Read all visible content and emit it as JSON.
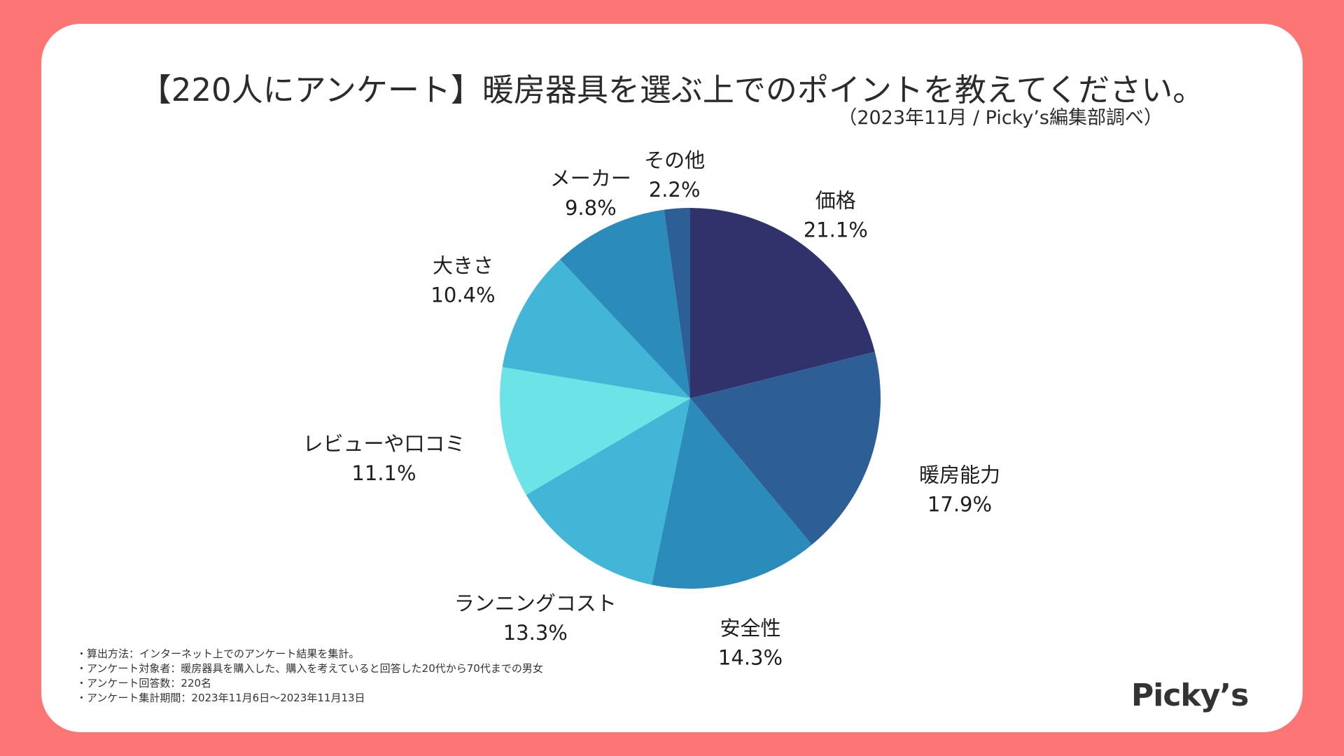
{
  "title": "【220人にアンケート】暖房器具を選ぶ上でのポイントを教えてください。",
  "subtitle": "（2023年11月 / Picky’s編集部調べ）",
  "brand": "Picky’s",
  "notes": [
    "・算出方法：インターネット上でのアンケート結果を集計。",
    "・アンケート対象者：暖房器具を購入した、購入を考えていると回答した20代から70代までの男女",
    "・アンケート回答数：220名",
    "・アンケート集計期間：2023年11月6日〜2023年11月13日"
  ],
  "colors": {
    "background": "#fe7673",
    "card": "#ffffff"
  },
  "chart_data": {
    "type": "pie",
    "categories": [
      "価格",
      "暖房能力",
      "安全性",
      "ランニングコスト",
      "レビューや口コミ",
      "大きさ",
      "メーカー",
      "その他"
    ],
    "values": [
      21.1,
      17.9,
      14.3,
      13.3,
      11.1,
      10.4,
      9.8,
      2.2
    ],
    "value_labels": [
      "21.1%",
      "17.9%",
      "14.3%",
      "13.3%",
      "11.1%",
      "10.4%",
      "9.8%",
      "2.2%"
    ],
    "colors": [
      "#30336b",
      "#2d5f96",
      "#2b8bba",
      "#41b6d6",
      "#6ce3e7",
      "#41b6d6",
      "#2b8bba",
      "#2d5f96"
    ],
    "start": "12 o'clock",
    "direction": "clockwise"
  }
}
